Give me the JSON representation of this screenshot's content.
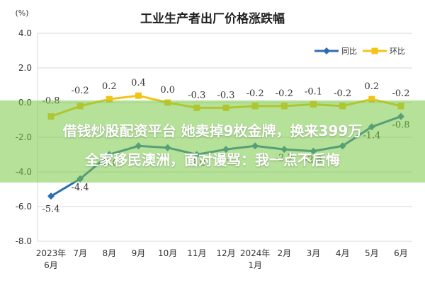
{
  "chart_data": {
    "type": "line",
    "title": "工业生产者出厂价格涨跌幅",
    "ylabel": "(%)",
    "xlabel": "",
    "ylim": [
      -8.0,
      4.0
    ],
    "y_ticks": [
      "4.0",
      "2.0",
      "0.0",
      "-2.0",
      "-4.0",
      "-6.0",
      "-8.0"
    ],
    "x": [
      [
        "2023年",
        "6月"
      ],
      [
        "7月"
      ],
      [
        "8月"
      ],
      [
        "9月"
      ],
      [
        "10月"
      ],
      [
        "11月"
      ],
      [
        "12月"
      ],
      [
        "2024年",
        "1月"
      ],
      [
        "2月"
      ],
      [
        "3月"
      ],
      [
        "4月"
      ],
      [
        "5月"
      ],
      [
        "6月"
      ]
    ],
    "grid": true,
    "legend": "top-right",
    "series": [
      {
        "name": "同比",
        "color": "#2e6db4",
        "values": [
          -5.4,
          -4.4,
          -3.0,
          -2.5,
          -2.6,
          -3.0,
          -2.7,
          -2.5,
          -2.7,
          -2.8,
          -2.5,
          -1.4,
          -0.8
        ],
        "labels": [
          "-5.4",
          "-4.4",
          "-3.0",
          "",
          "",
          "-3.0",
          "-2.7",
          "",
          "-2.7",
          "-2.8",
          "",
          "-1.4",
          "-0.8"
        ]
      },
      {
        "name": "环比",
        "color": "#f2c418",
        "values": [
          -0.8,
          -0.2,
          0.2,
          0.4,
          0.0,
          -0.3,
          -0.3,
          -0.2,
          -0.2,
          -0.1,
          -0.2,
          0.2,
          -0.2
        ],
        "labels": [
          "-0.8",
          "-0.2",
          "0.2",
          "0.4",
          "0.0",
          "-0.3",
          "-0.3",
          "-0.2",
          "-0.2",
          "-0.1",
          "-0.2",
          "0.2",
          "-0.2"
        ]
      }
    ]
  },
  "overlay": {
    "line1": "借钱炒股配资平台 她卖掉9枚金牌，换来399万",
    "line2": "全家移民澳洲，面对谩骂：我一点不后悔"
  },
  "colors": {
    "grid": "#d9d9d9",
    "axis_text": "#333333",
    "overlay_green": "#78c846"
  }
}
